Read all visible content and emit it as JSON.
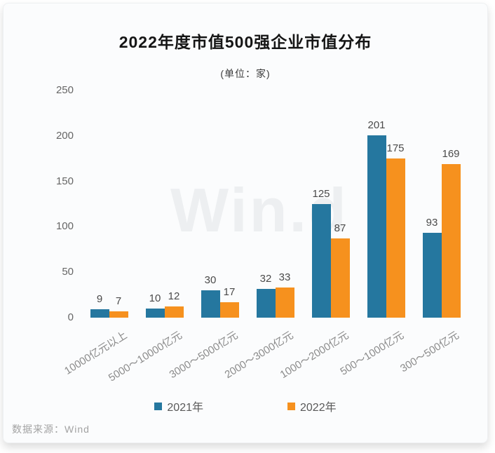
{
  "chart_data": {
    "type": "bar",
    "title": "2022年度市值500强企业市值分布",
    "subtitle": "(单位：家)",
    "categories": [
      "10000亿元以上",
      "5000～10000亿元",
      "3000～5000亿元",
      "2000～3000亿元",
      "1000～2000亿元",
      "500～1000亿元",
      "300～500亿元"
    ],
    "series": [
      {
        "name": "2021年",
        "color": "#25779F",
        "values": [
          9,
          10,
          30,
          32,
          125,
          201,
          93
        ]
      },
      {
        "name": "2022年",
        "color": "#F6911E",
        "values": [
          7,
          12,
          17,
          33,
          87,
          175,
          169
        ]
      }
    ],
    "ylim": [
      0,
      250
    ],
    "ytick_step": 50,
    "grid": false,
    "legend_position": "bottom",
    "value_labels": true
  },
  "watermark": "Win.d",
  "footer": {
    "source": "数据来源：Wind"
  }
}
